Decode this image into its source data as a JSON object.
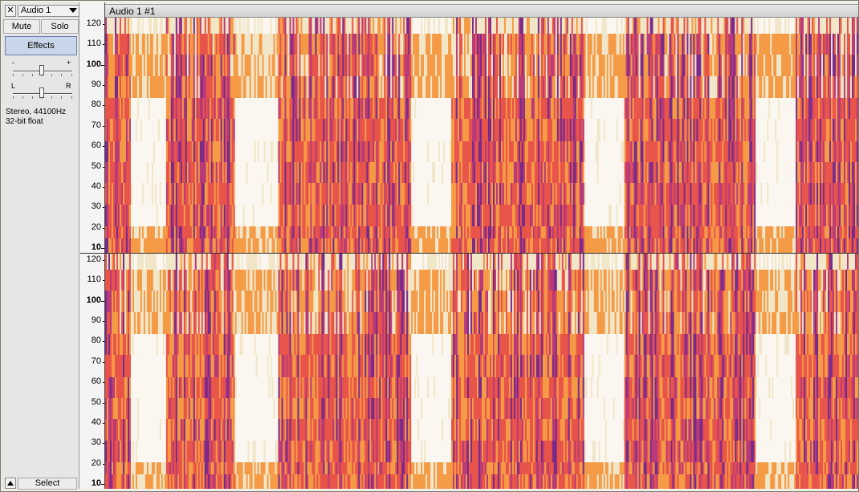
{
  "track": {
    "close_glyph": "✕",
    "name": "Audio 1",
    "mute_label": "Mute",
    "solo_label": "Solo",
    "effects_label": "Effects",
    "gain": {
      "min_label": "-",
      "max_label": "+",
      "level": 0.5
    },
    "pan": {
      "left_label": "L",
      "right_label": "R",
      "level": 0.5
    },
    "format_line1": "Stereo, 44100Hz",
    "format_line2": "32-bit float",
    "select_label": "Select"
  },
  "clip": {
    "title": "Audio 1 #1"
  },
  "ruler": {
    "labels": [
      "120",
      "110",
      "100",
      "90",
      "80",
      "70",
      "60",
      "50",
      "40",
      "30",
      "20",
      "10"
    ],
    "bold": [
      "100",
      "10"
    ]
  },
  "spectrogram": {
    "colors": {
      "quiet": "#fbf7f0",
      "pale": "#f2e6c8",
      "orange": "#f59a45",
      "red": "#e8544a",
      "magenta": "#b93a78",
      "purple": "#7a2a8a"
    }
  },
  "icons": {
    "close": "close-icon",
    "menu": "dropdown-arrow-icon",
    "collapse": "collapse-arrow-icon"
  }
}
